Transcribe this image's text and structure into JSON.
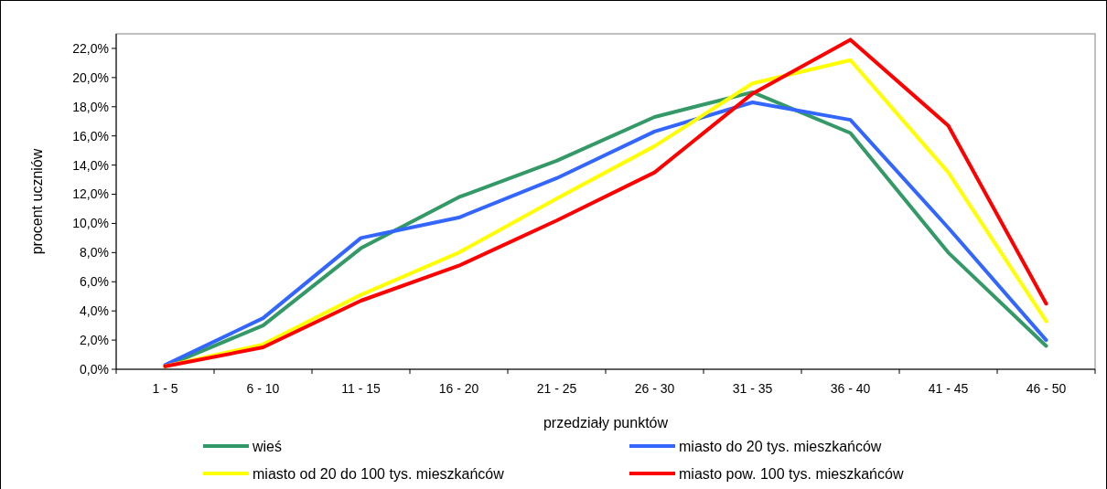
{
  "chart_data": {
    "type": "line",
    "xlabel": "przedziały punktów",
    "ylabel": "procent uczniów",
    "categories": [
      "1 - 5",
      "6 - 10",
      "11 - 15",
      "16 - 20",
      "21 - 25",
      "26 - 30",
      "31 - 35",
      "36 - 40",
      "41 - 45",
      "46 - 50"
    ],
    "series": [
      {
        "name": "wieś",
        "color": "#339966",
        "values": [
          0.2,
          3.0,
          8.3,
          11.8,
          14.3,
          17.3,
          19.0,
          16.2,
          8.0,
          1.6
        ]
      },
      {
        "name": "miasto do 20 tys. mieszkańców",
        "color": "#3366ff",
        "values": [
          0.3,
          3.5,
          9.0,
          10.4,
          13.1,
          16.3,
          18.3,
          17.1,
          9.7,
          2.0
        ]
      },
      {
        "name": "miasto od 20 do 100 tys. mieszkańców",
        "color": "#ffff00",
        "values": [
          0.2,
          1.7,
          5.1,
          8.0,
          11.7,
          15.3,
          19.6,
          21.2,
          13.5,
          3.3
        ]
      },
      {
        "name": "miasto pow. 100 tys. mieszkańców",
        "color": "#ff0000",
        "values": [
          0.2,
          1.5,
          4.7,
          7.1,
          10.2,
          13.5,
          18.9,
          22.6,
          16.7,
          4.5
        ]
      }
    ],
    "ylim": [
      0,
      23
    ],
    "yticks": [
      {
        "value": 0,
        "label": "0,0%"
      },
      {
        "value": 2,
        "label": "2,0%"
      },
      {
        "value": 4,
        "label": "4,0%"
      },
      {
        "value": 6,
        "label": "6,0%"
      },
      {
        "value": 8,
        "label": "8,0%"
      },
      {
        "value": 10,
        "label": "10,0%"
      },
      {
        "value": 12,
        "label": "12,0%"
      },
      {
        "value": 14,
        "label": "14,0%"
      },
      {
        "value": 16,
        "label": "16,0%"
      },
      {
        "value": 18,
        "label": "18,0%"
      },
      {
        "value": 20,
        "label": "20,0%"
      },
      {
        "value": 22,
        "label": "22,0%"
      }
    ],
    "legend": "bottom",
    "grid": false,
    "marker": "none",
    "line_style": "solid"
  }
}
